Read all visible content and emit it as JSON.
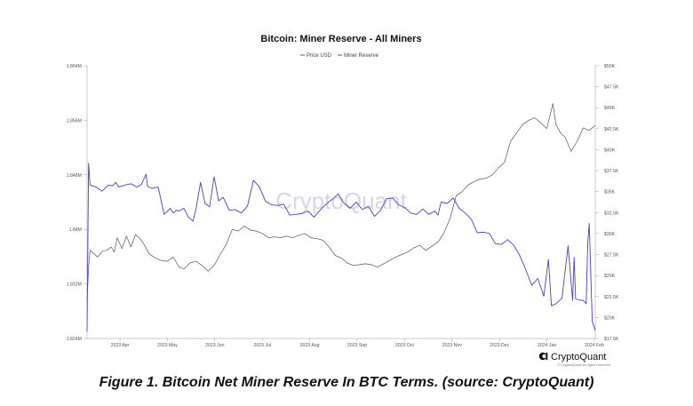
{
  "chart_data": {
    "type": "line",
    "title": "Bitcoin: Miner Reserve - All Miners",
    "legend": [
      "Price USD",
      "Miner Reserve"
    ],
    "legend_position": "top-center",
    "x_labels": [
      "2023 Apr",
      "2023 May",
      "2023 Jun",
      "2023 Jul",
      "2023 Aug",
      "2023 Sep",
      "2023 Oct",
      "2023 Nov",
      "2023 Dec",
      "2024 Jan",
      "2024 Feb"
    ],
    "left_axis": {
      "label": "Miner Reserve",
      "ticks": [
        "1.824M",
        "1.832M",
        "1.84M",
        "1.848M",
        "1.856M",
        "1.864M"
      ],
      "ylim": [
        1.824,
        1.864
      ]
    },
    "right_axis": {
      "label": "Price USD",
      "ticks": [
        "$17.5K",
        "$20K",
        "$22.5K",
        "$25K",
        "$27.5K",
        "$30K",
        "$32.5K",
        "$35K",
        "$37.5K",
        "$40K",
        "$42.5K",
        "$45K",
        "$47.5K",
        "$50K"
      ],
      "ylim": [
        17.5,
        50
      ]
    },
    "colors": {
      "price": "#555555",
      "reserve": "#4b3fc2"
    },
    "series": [
      {
        "name": "Price USD",
        "axis": "right",
        "x": [
          0,
          1,
          2,
          4,
          7,
          10,
          13,
          16,
          18,
          20,
          23,
          26,
          29,
          32,
          35,
          38,
          41,
          45,
          49,
          53,
          57,
          61,
          64,
          68,
          72,
          76,
          80,
          84,
          88,
          92,
          96,
          100,
          104,
          108,
          112,
          116,
          120,
          124,
          128,
          132,
          136,
          140,
          144,
          148,
          152,
          156,
          160,
          164,
          168,
          172,
          176,
          180,
          184,
          188,
          192,
          196,
          200,
          204,
          208,
          212,
          216,
          220,
          224,
          228,
          232,
          236,
          240,
          244,
          248,
          252,
          256,
          260,
          264,
          268,
          272,
          276,
          280,
          284,
          288,
          292,
          296,
          300,
          304,
          306,
          308,
          310,
          313,
          316,
          320,
          324,
          328,
          332,
          336
        ],
        "values": [
          22.0,
          26.0,
          28.0,
          27.7,
          27.2,
          27.9,
          28.0,
          28.4,
          27.8,
          29.5,
          28.2,
          29.7,
          28.4,
          29.9,
          29.4,
          28.6,
          27.6,
          27.1,
          26.8,
          26.7,
          27.2,
          26.0,
          25.8,
          26.5,
          26.7,
          26.2,
          25.5,
          26.2,
          27.5,
          28.7,
          30.5,
          30.3,
          30.9,
          30.4,
          30.3,
          30.0,
          29.5,
          29.6,
          29.5,
          29.7,
          29.5,
          29.8,
          30.0,
          29.5,
          29.4,
          29.2,
          28.4,
          27.4,
          27.1,
          26.5,
          26.2,
          26.3,
          26.4,
          26.3,
          26.0,
          26.4,
          26.8,
          27.2,
          27.5,
          27.8,
          28.3,
          28.6,
          28.0,
          28.5,
          29.0,
          30.1,
          31.8,
          34.5,
          35.0,
          35.8,
          36.2,
          36.5,
          36.6,
          37.0,
          37.8,
          38.5,
          41.0,
          42.0,
          43.0,
          43.5,
          43.8,
          43.2,
          42.5,
          44.0,
          45.5,
          43.0,
          42.0,
          41.5,
          39.8,
          41.0,
          42.6,
          42.3,
          42.9
        ]
      },
      {
        "name": "Miner Reserve",
        "axis": "left",
        "x": [
          0,
          1,
          2,
          6,
          10,
          14,
          17,
          19,
          21,
          25,
          29,
          33,
          36,
          39,
          40,
          41,
          43,
          47,
          51,
          55,
          57,
          59,
          61,
          64,
          67,
          70,
          72,
          75,
          78,
          81,
          84,
          87,
          90,
          94,
          98,
          102,
          106,
          110,
          114,
          118,
          122,
          126,
          130,
          134,
          138,
          142,
          146,
          150,
          154,
          158,
          162,
          166,
          170,
          174,
          178,
          182,
          186,
          190,
          194,
          198,
          202,
          206,
          210,
          214,
          218,
          222,
          226,
          230,
          232,
          234,
          238,
          242,
          246,
          250,
          254,
          258,
          262,
          266,
          270,
          274,
          278,
          282,
          286,
          290,
          294,
          298,
          302,
          305,
          306,
          307,
          310,
          314,
          318,
          321,
          322,
          323,
          326,
          328,
          330,
          331,
          332,
          334,
          336
        ],
        "values": [
          1.825,
          1.8497,
          1.8465,
          1.8462,
          1.8456,
          1.8465,
          1.8464,
          1.8469,
          1.8462,
          1.8465,
          1.8467,
          1.8462,
          1.8466,
          1.8481,
          1.8463,
          1.8462,
          1.846,
          1.8462,
          1.8422,
          1.8431,
          1.8424,
          1.8428,
          1.8427,
          1.8431,
          1.8418,
          1.8412,
          1.843,
          1.8469,
          1.8438,
          1.8433,
          1.8477,
          1.8442,
          1.8447,
          1.8428,
          1.8429,
          1.8424,
          1.8434,
          1.8472,
          1.8462,
          1.8441,
          1.8436,
          1.8435,
          1.8437,
          1.8421,
          1.8422,
          1.8423,
          1.8427,
          1.8418,
          1.8428,
          1.8437,
          1.8444,
          1.8452,
          1.8438,
          1.8431,
          1.844,
          1.8429,
          1.8434,
          1.8419,
          1.8428,
          1.8445,
          1.8446,
          1.8436,
          1.8432,
          1.8424,
          1.8422,
          1.843,
          1.8422,
          1.8427,
          1.8421,
          1.844,
          1.8438,
          1.8446,
          1.8431,
          1.8424,
          1.8415,
          1.8395,
          1.8396,
          1.8394,
          1.8379,
          1.8378,
          1.8385,
          1.8377,
          1.8362,
          1.8341,
          1.8318,
          1.8328,
          1.8302,
          1.8356,
          1.8324,
          1.8288,
          1.8291,
          1.8299,
          1.8376,
          1.8296,
          1.8359,
          1.8298,
          1.8296,
          1.8296,
          1.8291,
          1.838,
          1.8409,
          1.8265,
          1.8252
        ]
      }
    ],
    "watermark": "CryptoQuant"
  },
  "brand": {
    "name": "CryptoQuant",
    "copyright": "© CryptoQuant All rights reserved"
  },
  "caption": "Figure 1. Bitcoin Net Miner Reserve In BTC Terms. (source: CryptoQuant)"
}
